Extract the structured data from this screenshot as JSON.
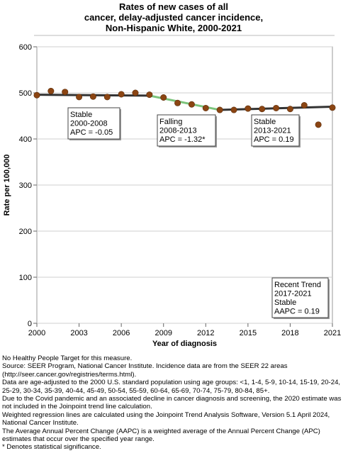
{
  "chart_data": {
    "type": "line",
    "title_lines": [
      "Rates of new cases of all",
      "cancer, delay-adjusted cancer incidence,",
      "Non-Hispanic White,  2000-2021"
    ],
    "xlabel": "Year of diagnosis",
    "ylabel": "Rate per 100,000",
    "xlim": [
      2000,
      2021
    ],
    "ylim": [
      0,
      600
    ],
    "xticks": [
      2000,
      2003,
      2006,
      2009,
      2012,
      2015,
      2018,
      2021
    ],
    "yticks": [
      0,
      100,
      200,
      300,
      400,
      500,
      600
    ],
    "grid": true,
    "observed": {
      "color": "#8b4513",
      "x": [
        2000,
        2001,
        2002,
        2003,
        2004,
        2005,
        2006,
        2007,
        2008,
        2009,
        2010,
        2011,
        2012,
        2013,
        2014,
        2015,
        2016,
        2017,
        2018,
        2019,
        2020,
        2021
      ],
      "y": [
        495,
        504,
        502,
        491,
        492,
        491,
        497,
        500,
        496,
        490,
        478,
        475,
        467,
        463,
        463,
        466,
        465,
        467,
        465,
        473,
        431,
        468
      ]
    },
    "trend_segments": [
      {
        "x": [
          2000,
          2008
        ],
        "y": [
          496,
          494
        ],
        "color": "#333333"
      },
      {
        "x": [
          2008,
          2013
        ],
        "y": [
          494,
          463
        ],
        "color": "#7cc47c"
      },
      {
        "x": [
          2013,
          2021
        ],
        "y": [
          463,
          470
        ],
        "color": "#333333"
      }
    ],
    "annotations": [
      {
        "lines": [
          "Stable",
          "2000-2008",
          "APC = -0.05"
        ]
      },
      {
        "lines": [
          "Falling",
          "2008-2013",
          "APC = -1.32*"
        ]
      },
      {
        "lines": [
          "Stable",
          "2013-2021",
          "APC =  0.19"
        ]
      },
      {
        "lines": [
          "Recent Trend",
          "2017-2021",
          "Stable",
          "AAPC =  0.19"
        ]
      }
    ]
  },
  "footnotes": [
    "No Healthy People Target for this measure.",
    "Source: SEER Program, National Cancer Institute. Incidence data are from the SEER 22 areas (http://seer.cancer.gov/registries/terms.html).",
    "Data are age-adjusted to the 2000 U.S. standard population using age groups: <1, 1-4, 5-9, 10-14, 15-19, 20-24, 25-29, 30-34, 35-39, 40-44, 45-49, 50-54, 55-59, 60-64, 65-69, 70-74, 75-79, 80-84, 85+.",
    "Due to the Covid pandemic and an associated decline in cancer diagnosis and screening, the 2020 estimate was not included in the Joinpoint trend line calculation.",
    "Weighted regression lines are calculated using the Joinpoint Trend Analysis Software, Version 5.1 April 2024, National Cancer Institute.",
    "The Average Annual Percent Change (AAPC) is a weighted average of the Annual Percent Change (APC) estimates that occur over the specified year range.",
    "* Denotes statistical significance."
  ]
}
